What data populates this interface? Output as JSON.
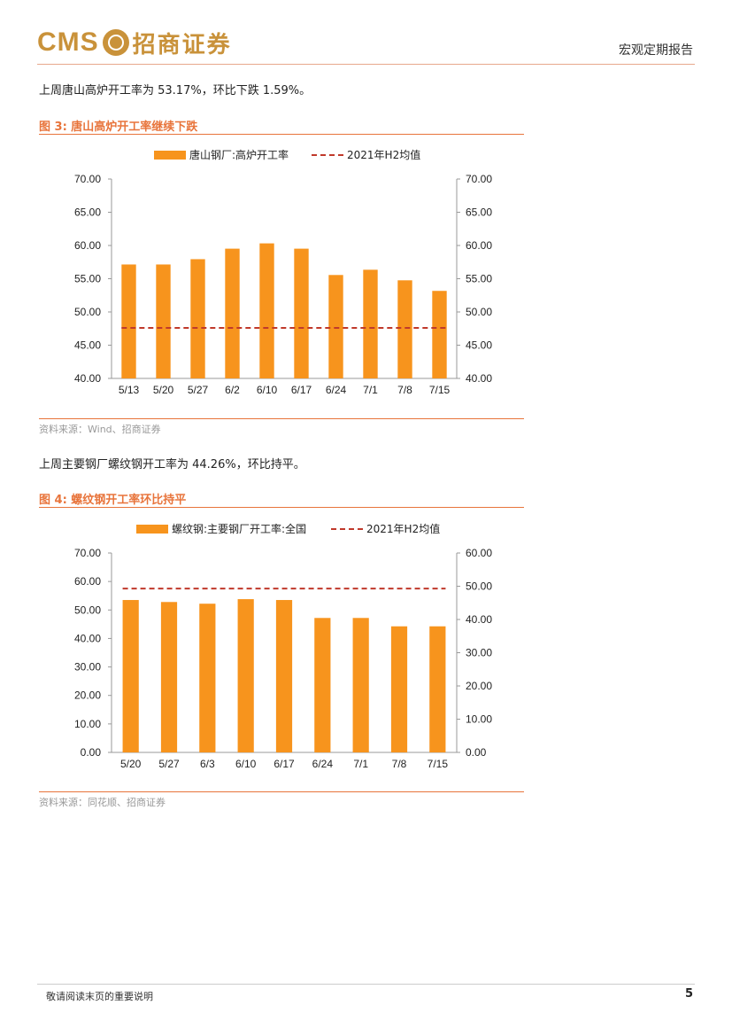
{
  "header": {
    "logo_latin": "CMS",
    "logo_cn": "招商证券",
    "report_type": "宏观定期报告"
  },
  "para1": "上周唐山高炉开工率为 53.17%，环比下跌 1.59%。",
  "fig3": {
    "title": "图 3:  唐山高炉开工率继续下跌",
    "source": "资料来源：Wind、招商证券"
  },
  "para2": "上周主要钢厂螺纹钢开工率为 44.26%，环比持平。",
  "fig4": {
    "title": "图 4:  螺纹钢开工率环比持平",
    "source": "资料来源：同花顺、招商证券"
  },
  "footer": {
    "note": "敬请阅读末页的重要说明",
    "page": "5"
  },
  "colors": {
    "bar": "#f7941d",
    "avg_line": "#c0392b",
    "accent": "#e8743b",
    "logo": "#c9923a"
  },
  "chart_data": [
    {
      "type": "bar",
      "categories": [
        "5/13",
        "5/20",
        "5/27",
        "6/2",
        "6/10",
        "6/17",
        "6/24",
        "7/1",
        "7/8",
        "7/15"
      ],
      "series": [
        {
          "name": "唐山钢厂:高炉开工率",
          "kind": "bar",
          "axis": "left",
          "values": [
            57.14,
            57.14,
            57.94,
            59.52,
            60.32,
            59.52,
            55.56,
            56.35,
            54.76,
            53.17
          ]
        },
        {
          "name": "2021年H2均值",
          "kind": "dashed-line",
          "axis": "left",
          "value": 47.6
        }
      ],
      "ylim_left": [
        40,
        70
      ],
      "ylim_right": [
        40,
        70
      ],
      "yticks_left": [
        "70.00",
        "65.00",
        "60.00",
        "55.00",
        "50.00",
        "45.00",
        "40.00"
      ],
      "yticks_right": [
        "70.00",
        "65.00",
        "60.00",
        "55.00",
        "50.00",
        "45.00",
        "40.00"
      ],
      "legend_position": "top"
    },
    {
      "type": "bar",
      "categories": [
        "5/20",
        "5/27",
        "6/3",
        "6/10",
        "6/17",
        "6/24",
        "7/1",
        "7/8",
        "7/15"
      ],
      "series": [
        {
          "name": "螺纹钢:主要钢厂开工率:全国",
          "kind": "bar",
          "axis": "left",
          "values": [
            53.5,
            52.8,
            52.2,
            53.8,
            53.5,
            47.2,
            47.2,
            44.26,
            44.26
          ]
        },
        {
          "name": "2021年H2均值",
          "kind": "dashed-line",
          "axis": "right",
          "value": 49.3
        }
      ],
      "ylim_left": [
        0,
        70
      ],
      "ylim_right": [
        0,
        60
      ],
      "yticks_left": [
        "70.00",
        "60.00",
        "50.00",
        "40.00",
        "30.00",
        "20.00",
        "10.00",
        "0.00"
      ],
      "yticks_right": [
        "60.00",
        "50.00",
        "40.00",
        "30.00",
        "20.00",
        "10.00",
        "0.00"
      ],
      "legend_position": "top"
    }
  ]
}
